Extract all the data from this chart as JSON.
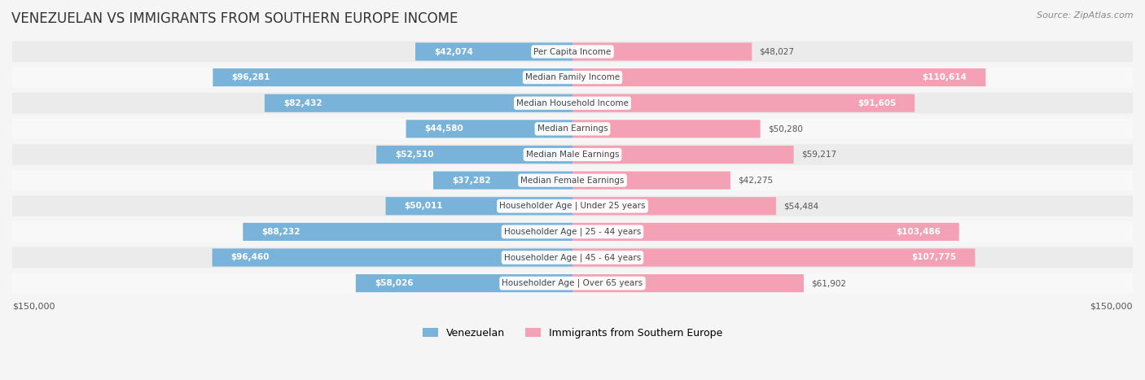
{
  "title": "VENEZUELAN VS IMMIGRANTS FROM SOUTHERN EUROPE INCOME",
  "source": "Source: ZipAtlas.com",
  "categories": [
    "Per Capita Income",
    "Median Family Income",
    "Median Household Income",
    "Median Earnings",
    "Median Male Earnings",
    "Median Female Earnings",
    "Householder Age | Under 25 years",
    "Householder Age | 25 - 44 years",
    "Householder Age | 45 - 64 years",
    "Householder Age | Over 65 years"
  ],
  "venezuelan_values": [
    42074,
    96281,
    82432,
    44580,
    52510,
    37282,
    50011,
    88232,
    96460,
    58026
  ],
  "southern_europe_values": [
    48027,
    110614,
    91605,
    50280,
    59217,
    42275,
    54484,
    103486,
    107775,
    61902
  ],
  "venezuelan_labels": [
    "$42,074",
    "$96,281",
    "$82,432",
    "$44,580",
    "$52,510",
    "$37,282",
    "$50,011",
    "$88,232",
    "$96,460",
    "$58,026"
  ],
  "southern_europe_labels": [
    "$48,027",
    "$110,614",
    "$91,605",
    "$50,280",
    "$59,217",
    "$42,275",
    "$54,484",
    "$103,486",
    "$107,775",
    "$61,902"
  ],
  "venezuelan_color": "#7ab3d9",
  "southern_europe_color": "#f4a0b5",
  "venezuelan_color_dark": "#5a9fd4",
  "southern_europe_color_dark": "#f07090",
  "max_value": 150000,
  "background_color": "#f5f5f5",
  "row_bg_light": "#f0f0f0",
  "row_bg_white": "#ffffff",
  "legend_venezuelan": "Venezuelan",
  "legend_southern_europe": "Immigrants from Southern Europe"
}
